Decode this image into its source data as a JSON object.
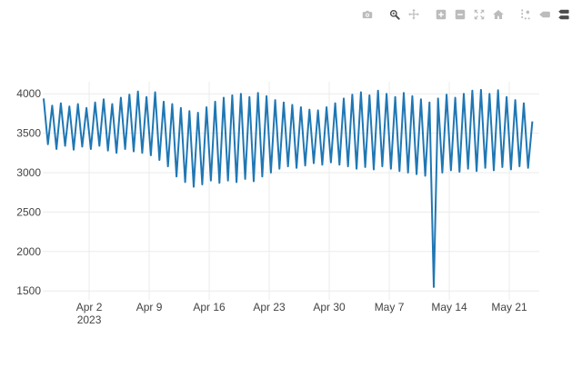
{
  "modebar": {
    "inactive_color": "#bcbcbc",
    "active_color": "#4c4c4c",
    "buttons": [
      {
        "name": "download-png",
        "icon": "camera-icon",
        "active": false
      },
      {
        "name": "zoom",
        "icon": "magnifier-icon",
        "active": true
      },
      {
        "name": "pan",
        "icon": "move-arrows-icon",
        "active": false
      },
      {
        "name": "zoom-in",
        "icon": "plus-square-icon",
        "active": false
      },
      {
        "name": "zoom-out",
        "icon": "minus-square-icon",
        "active": false
      },
      {
        "name": "autoscale",
        "icon": "expand-arrows-icon",
        "active": false
      },
      {
        "name": "reset-axes",
        "icon": "home-icon",
        "active": false
      },
      {
        "name": "toggle-spikelines",
        "icon": "spikelines-icon",
        "active": false
      },
      {
        "name": "hover-closest",
        "icon": "single-tag-icon",
        "active": false
      },
      {
        "name": "hover-compare",
        "icon": "double-tag-icon",
        "active": true
      }
    ]
  },
  "chart_data": {
    "type": "line",
    "title": "",
    "xlabel": "",
    "ylabel": "",
    "legend": false,
    "grid": true,
    "line_color": "#1f77b4",
    "grid_color": "#ebebeb",
    "tick_color": "#444444",
    "background": "#ffffff",
    "description": "High-frequency time series oscillating daily between roughly 2800 and 4050, with one extreme downward spike to about 1550 on 2023-05-12.",
    "start_date": "2023-03-28",
    "points_per_day": 2,
    "y_axis": {
      "ticks": [
        1500,
        2000,
        2500,
        3000,
        3500,
        4000
      ],
      "range": [
        1390,
        4090
      ]
    },
    "x_axis": {
      "ticks": [
        {
          "label": "Apr 2",
          "day": 5
        },
        {
          "label": "Apr 9",
          "day": 12
        },
        {
          "label": "Apr 16",
          "day": 19
        },
        {
          "label": "Apr 23",
          "day": 26
        },
        {
          "label": "Apr 30",
          "day": 33
        },
        {
          "label": "May 7",
          "day": 40
        },
        {
          "label": "May 14",
          "day": 47
        },
        {
          "label": "May 21",
          "day": 54
        }
      ],
      "year_label": {
        "label": "2023",
        "day": 5
      }
    },
    "daily_highs": [
      3940,
      3850,
      3880,
      3840,
      3870,
      3820,
      3890,
      3930,
      3870,
      3950,
      3990,
      4030,
      3960,
      4020,
      3900,
      3870,
      3820,
      3780,
      3760,
      3830,
      3900,
      3950,
      3980,
      4000,
      3960,
      4010,
      3970,
      3920,
      3890,
      3860,
      3830,
      3800,
      3790,
      3830,
      3880,
      3940,
      3990,
      4020,
      3980,
      4040,
      4000,
      3960,
      4010,
      3970,
      3930,
      3890,
      3940,
      3990,
      3950,
      4000,
      4040,
      4050,
      4000,
      4045,
      3960,
      3920,
      3880,
      3650
    ],
    "daily_lows": [
      3360,
      3300,
      3340,
      3290,
      3330,
      3300,
      3340,
      3280,
      3250,
      3300,
      3270,
      3250,
      3220,
      3160,
      3080,
      2950,
      2880,
      2820,
      2850,
      2900,
      2870,
      2900,
      2880,
      2920,
      2890,
      2950,
      3000,
      3050,
      3080,
      3060,
      3090,
      3120,
      3100,
      3130,
      3100,
      3080,
      3050,
      3070,
      3040,
      3080,
      3050,
      3020,
      3000,
      2980,
      2960,
      1550,
      3000,
      3030,
      3010,
      3050,
      3020,
      3060,
      3030,
      3070,
      3040,
      3080,
      3060,
      null
    ],
    "anomaly": {
      "date": "2023-05-12",
      "low": 1550
    }
  }
}
